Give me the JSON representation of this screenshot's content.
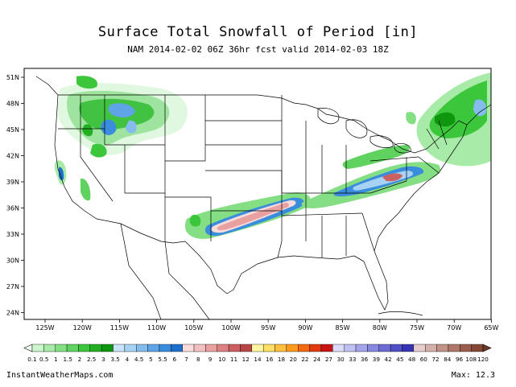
{
  "title": "Surface Total Snowfall of Period [in]",
  "subtitle": "NAM 2014-02-02 06Z 36hr fcst valid 2014-02-03 18Z",
  "lat_labels": [
    "51N",
    "48N",
    "45N",
    "42N",
    "39N",
    "36N",
    "33N",
    "30N",
    "27N",
    "24N"
  ],
  "lon_labels": [
    "125W",
    "120W",
    "115W",
    "110W",
    "105W",
    "100W",
    "95W",
    "90W",
    "85W",
    "80W",
    "75W",
    "70W",
    "65W"
  ],
  "colorbar": {
    "labels": [
      "0.1",
      "0.5",
      "1",
      "1.5",
      "2",
      "2.5",
      "3",
      "3.5",
      "4",
      "4.5",
      "5",
      "5.5",
      "6",
      "7",
      "8",
      "9",
      "10",
      "11",
      "12",
      "14",
      "16",
      "18",
      "20",
      "22",
      "24",
      "27",
      "30",
      "33",
      "36",
      "39",
      "42",
      "45",
      "48",
      "60",
      "72",
      "84",
      "96",
      "108",
      "120"
    ],
    "colors": [
      "#ccf5cc",
      "#a8eaa8",
      "#84de84",
      "#5fd25f",
      "#3cc63c",
      "#22b022",
      "#0e960e",
      "#c8e4f8",
      "#a8d2f4",
      "#84bcee",
      "#5ea4e6",
      "#3a8cdc",
      "#1c70cc",
      "#fadcdc",
      "#f2c0c0",
      "#e8a0a0",
      "#dc8080",
      "#cc6060",
      "#b84646",
      "#fff6a0",
      "#ffe066",
      "#ffc040",
      "#ff9a20",
      "#f46a10",
      "#e23a10",
      "#c81414",
      "#dcdcfa",
      "#c0c0f2",
      "#a4a4ea",
      "#8888e0",
      "#6c6cd4",
      "#5050c6",
      "#3434b4",
      "#e6cccc",
      "#d4b0aa",
      "#c29488",
      "#b07868",
      "#9c5e4c",
      "#844834"
    ]
  },
  "footer": {
    "source": "InstantWeatherMaps.com",
    "max_label": "Max:",
    "max_value": "12.3"
  }
}
